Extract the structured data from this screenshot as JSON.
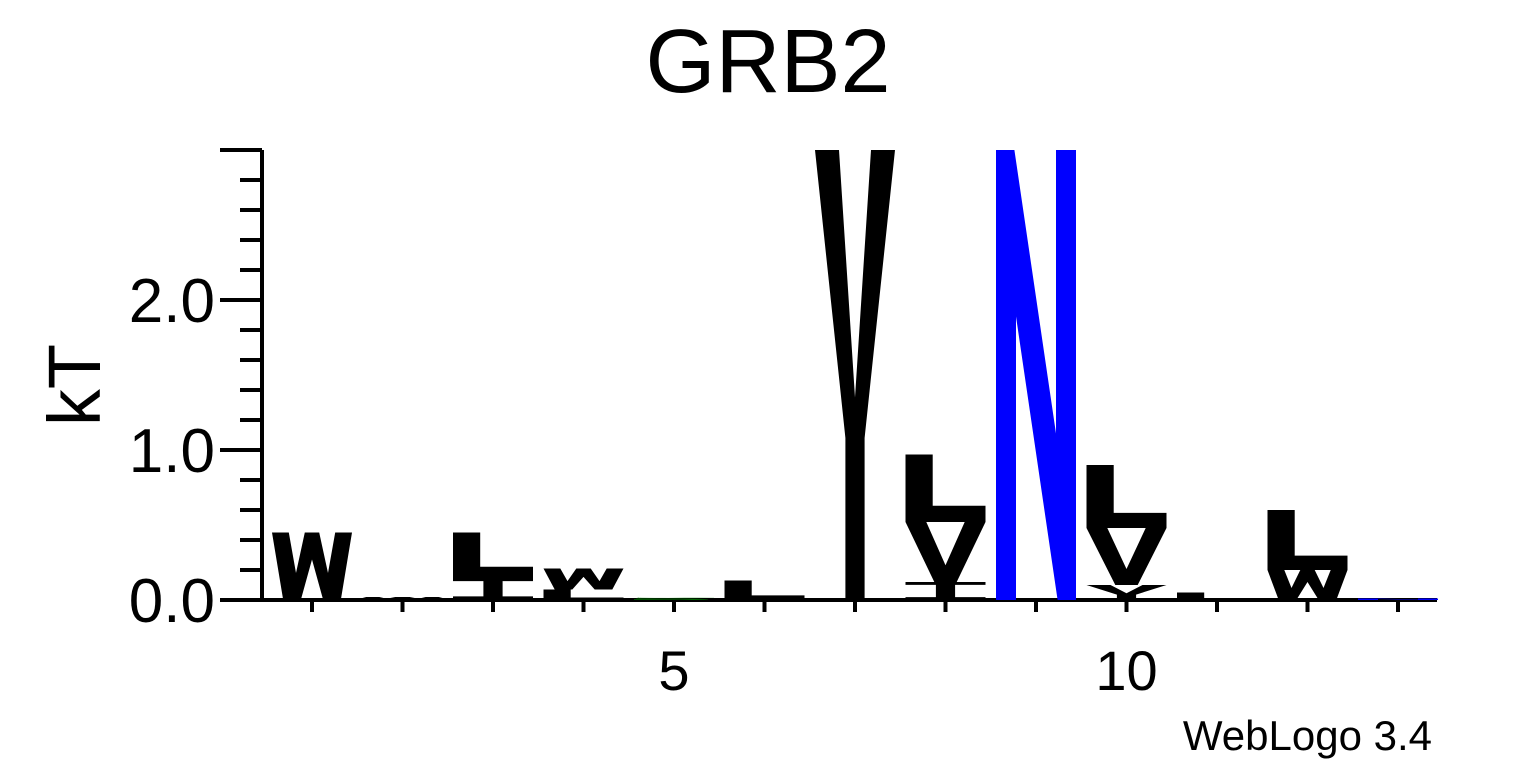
{
  "chart_data": {
    "type": "sequence-logo",
    "title": "GRB2",
    "ylabel": "kT",
    "xlabel": "",
    "ylim": [
      0,
      3.0
    ],
    "y_ticks": [
      "0.0",
      "1.0",
      "2.0"
    ],
    "x_ticks": [
      "5",
      "10"
    ],
    "positions": [
      {
        "position": 1,
        "letters": [
          {
            "letter": "W",
            "height": 0.45,
            "color": "#000000"
          }
        ]
      },
      {
        "position": 2,
        "letters": [
          {
            "letter": "W",
            "height": 0.02,
            "color": "#000000"
          }
        ]
      },
      {
        "position": 3,
        "letters": [
          {
            "letter": "L",
            "height": 0.3,
            "color": "#000000"
          },
          {
            "letter": "I",
            "height": 0.15,
            "color": "#000000"
          }
        ]
      },
      {
        "position": 4,
        "letters": [
          {
            "letter": "W",
            "height": 0.14,
            "color": "#000000"
          },
          {
            "letter": "L",
            "height": 0.07,
            "color": "#000000"
          }
        ]
      },
      {
        "position": 5,
        "letters": [
          {
            "letter": "S",
            "height": 0.02,
            "color": "#008000"
          }
        ]
      },
      {
        "position": 6,
        "letters": [
          {
            "letter": "L",
            "height": 0.13,
            "color": "#000000"
          }
        ]
      },
      {
        "position": 7,
        "letters": [
          {
            "letter": "Y",
            "height": 3.0,
            "color": "#000000"
          }
        ]
      },
      {
        "position": 8,
        "letters": [
          {
            "letter": "L",
            "height": 0.45,
            "color": "#000000"
          },
          {
            "letter": "V",
            "height": 0.4,
            "color": "#000000"
          },
          {
            "letter": "I",
            "height": 0.12,
            "color": "#000000"
          }
        ]
      },
      {
        "position": 9,
        "letters": [
          {
            "letter": "N",
            "height": 3.0,
            "color": "#0000ff"
          }
        ]
      },
      {
        "position": 10,
        "letters": [
          {
            "letter": "L",
            "height": 0.42,
            "color": "#000000"
          },
          {
            "letter": "V",
            "height": 0.38,
            "color": "#000000"
          },
          {
            "letter": "Y",
            "height": 0.1,
            "color": "#000000"
          }
        ]
      },
      {
        "position": 11,
        "letters": [
          {
            "letter": "L",
            "height": 0.05,
            "color": "#000000"
          }
        ]
      },
      {
        "position": 12,
        "letters": [
          {
            "letter": "L",
            "height": 0.4,
            "color": "#000000"
          },
          {
            "letter": "W",
            "height": 0.2,
            "color": "#000000"
          }
        ]
      },
      {
        "position": 13,
        "letters": [
          {
            "letter": "N",
            "height": 0.01,
            "color": "#0000ff"
          }
        ]
      }
    ],
    "grid": false
  },
  "footer": {
    "credit": "WebLogo 3.4"
  }
}
